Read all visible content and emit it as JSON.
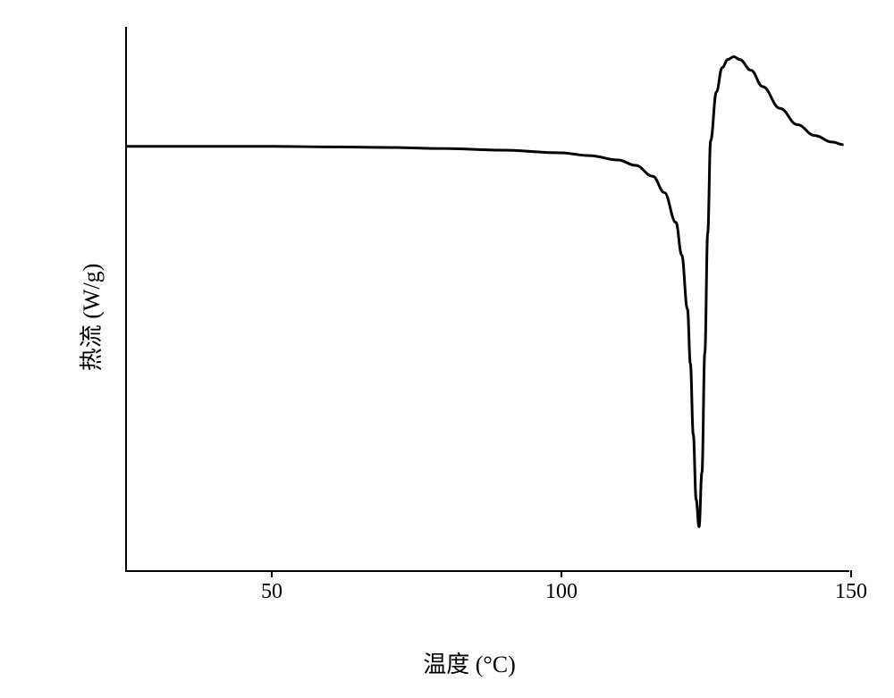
{
  "dsc_chart": {
    "type": "line",
    "x_label": "温度 (°C)",
    "y_label": "热流 (W/g)",
    "x_label_fontsize": 26,
    "y_label_fontsize": 26,
    "tick_fontsize": 24,
    "x_ticks": [
      50,
      100,
      150
    ],
    "x_range": [
      25,
      150
    ],
    "y_range": [
      0,
      1
    ],
    "background_color": "#ffffff",
    "axis_color": "#000000",
    "line_color": "#000000",
    "line_width": 3,
    "baseline_y": 0.78,
    "data_points": [
      [
        25,
        0.78
      ],
      [
        30,
        0.78
      ],
      [
        40,
        0.78
      ],
      [
        50,
        0.78
      ],
      [
        60,
        0.779
      ],
      [
        70,
        0.778
      ],
      [
        80,
        0.776
      ],
      [
        90,
        0.773
      ],
      [
        100,
        0.768
      ],
      [
        105,
        0.763
      ],
      [
        110,
        0.755
      ],
      [
        113,
        0.745
      ],
      [
        116,
        0.725
      ],
      [
        118,
        0.695
      ],
      [
        120,
        0.64
      ],
      [
        121,
        0.58
      ],
      [
        122,
        0.48
      ],
      [
        122.5,
        0.38
      ],
      [
        123,
        0.25
      ],
      [
        123.5,
        0.13
      ],
      [
        124,
        0.08
      ],
      [
        124.5,
        0.18
      ],
      [
        125,
        0.4
      ],
      [
        125.5,
        0.62
      ],
      [
        126,
        0.79
      ],
      [
        127,
        0.88
      ],
      [
        128,
        0.925
      ],
      [
        129,
        0.94
      ],
      [
        130,
        0.945
      ],
      [
        131,
        0.94
      ],
      [
        133,
        0.92
      ],
      [
        135,
        0.89
      ],
      [
        138,
        0.85
      ],
      [
        141,
        0.82
      ],
      [
        144,
        0.8
      ],
      [
        147,
        0.788
      ],
      [
        149,
        0.783
      ]
    ]
  }
}
